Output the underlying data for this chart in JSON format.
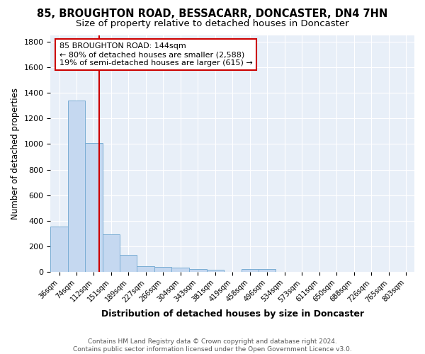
{
  "title1": "85, BROUGHTON ROAD, BESSACARR, DONCASTER, DN4 7HN",
  "title2": "Size of property relative to detached houses in Doncaster",
  "xlabel": "Distribution of detached houses by size in Doncaster",
  "ylabel": "Number of detached properties",
  "footer": "Contains HM Land Registry data © Crown copyright and database right 2024.\nContains public sector information licensed under the Open Government Licence v3.0.",
  "bar_labels": [
    "36sqm",
    "74sqm",
    "112sqm",
    "151sqm",
    "189sqm",
    "227sqm",
    "266sqm",
    "304sqm",
    "343sqm",
    "381sqm",
    "419sqm",
    "458sqm",
    "496sqm",
    "534sqm",
    "573sqm",
    "611sqm",
    "650sqm",
    "688sqm",
    "726sqm",
    "765sqm",
    "803sqm"
  ],
  "bar_values": [
    355,
    1340,
    1010,
    295,
    130,
    42,
    38,
    33,
    20,
    18,
    0,
    20,
    20,
    0,
    0,
    0,
    0,
    0,
    0,
    0,
    0
  ],
  "bar_color": "#c5d8f0",
  "bar_edge_color": "#7aadd4",
  "red_line_x": 144,
  "bin_edges": [
    36,
    74,
    112,
    151,
    189,
    227,
    266,
    304,
    343,
    381,
    419,
    458,
    496,
    534,
    573,
    611,
    650,
    688,
    726,
    765,
    803,
    841
  ],
  "annotation_text": "85 BROUGHTON ROAD: 144sqm\n← 80% of detached houses are smaller (2,588)\n19% of semi-detached houses are larger (615) →",
  "annotation_color": "#cc0000",
  "ylim": [
    0,
    1850
  ],
  "yticks": [
    0,
    200,
    400,
    600,
    800,
    1000,
    1200,
    1400,
    1600,
    1800
  ],
  "bg_color": "#e8eff8",
  "grid_color": "#ffffff",
  "title1_fontsize": 10.5,
  "title2_fontsize": 9.5,
  "xlabel_fontsize": 9,
  "ylabel_fontsize": 8.5
}
